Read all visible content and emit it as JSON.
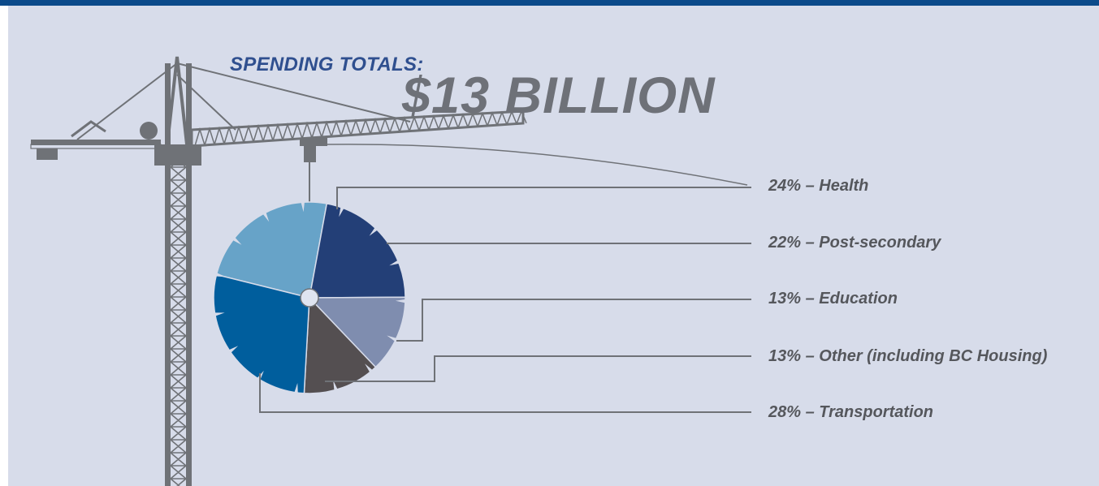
{
  "title": "SPENDING TOTALS:",
  "total": "$13 BILLION",
  "chart_data": {
    "type": "pie",
    "categories": [
      "Health",
      "Post-secondary",
      "Education",
      "Other (including BC Housing)",
      "Transportation"
    ],
    "values": [
      24,
      22,
      13,
      13,
      28
    ],
    "labels": [
      "24% – Health",
      "22% – Post-secondary",
      "13% – Education",
      "13% – Other (including BC Housing)",
      "28% – Transportation"
    ],
    "colors": [
      "#67a3c8",
      "#233f77",
      "#7f8daf",
      "#544f51",
      "#005e9d"
    ],
    "legend": "right"
  },
  "colors": {
    "background": "#d7dcea",
    "topbar": "#0b4a8a",
    "crane": "#6f7277",
    "leader_lines": "#6f7277"
  }
}
